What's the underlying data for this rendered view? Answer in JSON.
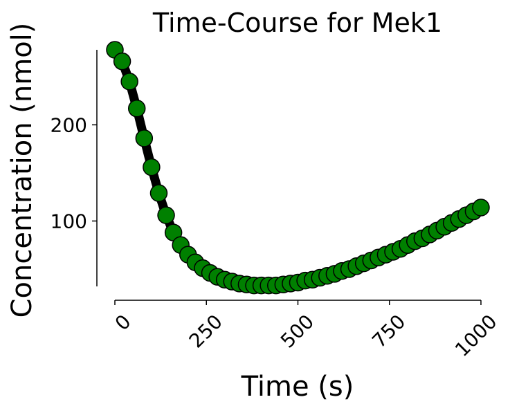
{
  "chart_data": {
    "type": "line",
    "title": "Time-Course for Mek1",
    "xlabel": "Time (s)",
    "ylabel": "Concentration (nmol)",
    "xlim": [
      0,
      1000
    ],
    "ylim": [
      32,
      278
    ],
    "x_ticks": [
      0,
      250,
      500,
      750,
      1000
    ],
    "x_tick_labels": [
      "0",
      "250",
      "500",
      "750",
      "1000"
    ],
    "y_ticks": [
      100,
      200
    ],
    "y_tick_labels": [
      "100",
      "200"
    ],
    "grid": false,
    "legend": "none",
    "line_color": "#000000",
    "marker_color": "#008000",
    "marker_edge_color": "#000000",
    "x": [
      0,
      20,
      40,
      60,
      80,
      100,
      120,
      140,
      160,
      180,
      200,
      220,
      240,
      260,
      280,
      300,
      320,
      340,
      360,
      380,
      400,
      420,
      440,
      460,
      480,
      500,
      520,
      540,
      560,
      580,
      600,
      620,
      640,
      660,
      680,
      700,
      720,
      740,
      760,
      780,
      800,
      820,
      840,
      860,
      880,
      900,
      920,
      940,
      960,
      980,
      1000
    ],
    "series": [
      {
        "values": [
          278,
          266,
          245,
          217,
          186,
          156,
          129,
          106,
          88,
          75,
          65,
          57,
          51,
          46,
          42,
          39,
          37,
          35,
          34,
          33,
          33,
          33,
          33,
          34,
          35,
          36,
          38,
          39,
          41,
          43,
          45,
          48,
          50,
          53,
          56,
          59,
          62,
          65,
          68,
          71,
          75,
          79,
          82,
          86,
          90,
          94,
          98,
          102,
          106,
          110,
          114
        ]
      }
    ]
  }
}
